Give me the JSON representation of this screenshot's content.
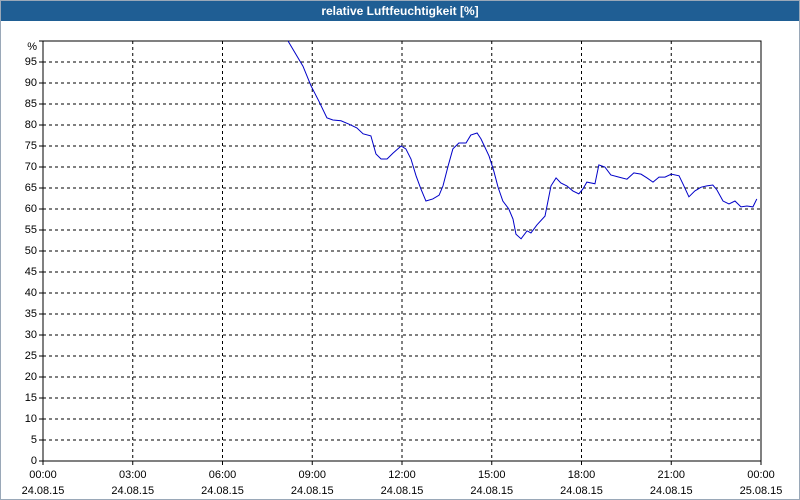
{
  "chart_data": {
    "type": "line",
    "title": "relative Luftfeuchtigkeit [%]",
    "x": [
      8.19,
      8.49,
      8.69,
      8.96,
      9.22,
      9.49,
      9.69,
      9.96,
      10.23,
      10.49,
      10.7,
      10.96,
      11.13,
      11.3,
      11.5,
      11.7,
      11.97,
      12.13,
      12.3,
      12.47,
      12.63,
      12.8,
      13.03,
      13.24,
      13.37,
      13.54,
      13.7,
      13.9,
      14.14,
      14.3,
      14.51,
      14.64,
      14.91,
      15.07,
      15.21,
      15.37,
      15.57,
      15.71,
      15.81,
      15.98,
      16.18,
      16.31,
      16.51,
      16.78,
      16.98,
      17.15,
      17.31,
      17.51,
      17.71,
      17.91,
      18.05,
      18.18,
      18.45,
      18.58,
      18.78,
      18.98,
      19.25,
      19.52,
      19.75,
      19.99,
      20.19,
      20.39,
      20.59,
      20.79,
      21.0,
      21.26,
      21.39,
      21.59,
      21.79,
      22.0,
      22.19,
      22.39,
      22.53,
      22.73,
      22.93,
      23.13,
      23.33,
      23.53,
      23.73,
      23.86
    ],
    "values": [
      100,
      96.4,
      94,
      89.3,
      85.7,
      81.7,
      81.2,
      81,
      80.2,
      79.3,
      77.9,
      77.4,
      73.1,
      71.9,
      71.9,
      73.3,
      75,
      74.3,
      71.9,
      67.9,
      64.8,
      61.9,
      62.4,
      63.3,
      65.5,
      70.2,
      74.3,
      75.7,
      75.7,
      77.6,
      78.1,
      76.7,
      72.6,
      69,
      65.2,
      61.9,
      60,
      57.6,
      54,
      52.9,
      54.8,
      54.3,
      56.2,
      58.3,
      65.5,
      67.4,
      66.2,
      65.5,
      64.3,
      63.6,
      64.8,
      66.4,
      66,
      70.5,
      70,
      68.1,
      67.6,
      67.1,
      68.6,
      68.3,
      67.4,
      66.4,
      67.6,
      67.6,
      68.3,
      67.9,
      66,
      62.9,
      64.3,
      65.2,
      65.5,
      65.7,
      64.5,
      61.9,
      61.2,
      61.9,
      60.5,
      60.7,
      60.5,
      62.4
    ],
    "color": "#0000c8",
    "xlim": [
      0,
      24
    ],
    "xticks": [
      {
        "value": 0,
        "label": "00:00\n24.08.15"
      },
      {
        "value": 3,
        "label": "03:00\n24.08.15"
      },
      {
        "value": 6,
        "label": "06:00\n24.08.15"
      },
      {
        "value": 9,
        "label": "09:00\n24.08.15"
      },
      {
        "value": 12,
        "label": "12:00\n24.08.15"
      },
      {
        "value": 15,
        "label": "15:00\n24.08.15"
      },
      {
        "value": 18,
        "label": "18:00\n24.08.15"
      },
      {
        "value": 21,
        "label": "21:00\n24.08.15"
      },
      {
        "value": 24,
        "label": "00:00\n25.08.15"
      }
    ],
    "ylim": [
      0,
      100
    ],
    "yticks": [
      0,
      5,
      10,
      15,
      20,
      25,
      30,
      35,
      40,
      45,
      50,
      55,
      60,
      65,
      70,
      75,
      80,
      85,
      90,
      95,
      {
        "value": 100,
        "label": "%"
      }
    ],
    "grid": true
  }
}
